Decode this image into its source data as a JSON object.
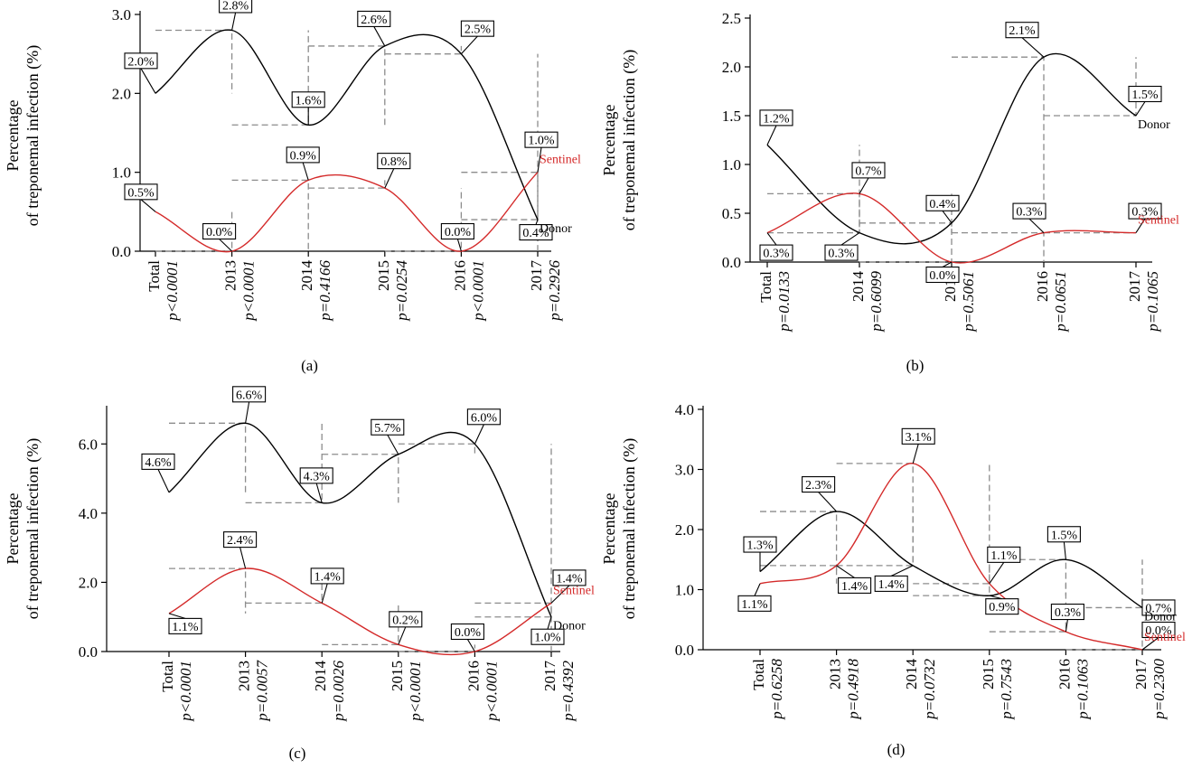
{
  "chart_data": [
    {
      "type": "line",
      "panel_label": "(a)",
      "ylabel_line1": "Percentage",
      "ylabel_line2": "of treponemal infection (%)",
      "ylim": [
        0,
        3.0
      ],
      "yticks": [
        0.0,
        1.0,
        2.0,
        3.0
      ],
      "ytick_labels": [
        "0.0",
        "1.0",
        "2.0",
        "3.0"
      ],
      "categories": [
        "Total",
        "2013",
        "2014",
        "2015",
        "2016",
        "2017"
      ],
      "pvalues": [
        "p<0.0001",
        "p<0.0001",
        "p=0.4166",
        "p=0.0254",
        "p<0.0001",
        "p=0.2926"
      ],
      "series": [
        {
          "name": "Donor",
          "color": "#000000",
          "values": [
            2.0,
            2.8,
            1.6,
            2.6,
            2.5,
            0.4
          ],
          "labels": [
            "2.0%",
            "2.8%",
            "1.6%",
            "2.6%",
            "2.5%",
            "0.4%"
          ]
        },
        {
          "name": "Sentinel",
          "color": "#d42a2a",
          "values": [
            0.5,
            0.0,
            0.9,
            0.8,
            0.0,
            1.0
          ],
          "labels": [
            "0.5%",
            "0.0%",
            "0.9%",
            "0.8%",
            "0.0%",
            "1.0%"
          ]
        }
      ]
    },
    {
      "type": "line",
      "panel_label": "(b)",
      "ylabel_line1": "Percentage",
      "ylabel_line2": "of treponemal infection (%)",
      "ylim": [
        0,
        2.5
      ],
      "yticks": [
        0.0,
        0.5,
        1.0,
        1.5,
        2.0,
        2.5
      ],
      "ytick_labels": [
        "0.0",
        "0.5",
        "1.0",
        "1.5",
        "2.0",
        "2.5"
      ],
      "categories": [
        "Total",
        "2014",
        "2015",
        "2016",
        "2017"
      ],
      "pvalues": [
        "p=0.0133",
        "p=0.6099",
        "p=0.5061",
        "p=0.0651",
        "p=0.1065"
      ],
      "series": [
        {
          "name": "Donor",
          "color": "#000000",
          "values": [
            1.2,
            0.3,
            0.4,
            2.1,
            1.5
          ],
          "labels": [
            "1.2%",
            "0.3%",
            "0.4%",
            "2.1%",
            "1.5%"
          ]
        },
        {
          "name": "Sentinel",
          "color": "#d42a2a",
          "values": [
            0.3,
            0.7,
            0.0,
            0.3,
            0.3
          ],
          "labels": [
            "0.3%",
            "0.7%",
            "0.0%",
            "0.3%",
            "0.3%"
          ]
        }
      ]
    },
    {
      "type": "line",
      "panel_label": "(c)",
      "ylabel_line1": "Percentage",
      "ylabel_line2": "of treponemal infection (%)",
      "ylim": [
        0,
        7.0
      ],
      "yticks": [
        0.0,
        2.0,
        4.0,
        6.0
      ],
      "ytick_labels": [
        "0.0",
        "2.0",
        "4.0",
        "6.0"
      ],
      "categories": [
        "Total",
        "2013",
        "2014",
        "2015",
        "2016",
        "2017"
      ],
      "pvalues": [
        "p<0.0001",
        "p=0.0057",
        "p=0.0026",
        "p<0.0001",
        "p<0.0001",
        "p=0.4392"
      ],
      "series": [
        {
          "name": "Donor",
          "color": "#000000",
          "values": [
            4.6,
            6.6,
            4.3,
            5.7,
            6.0,
            1.0
          ],
          "labels": [
            "4.6%",
            "6.6%",
            "4.3%",
            "5.7%",
            "6.0%",
            "1.0%"
          ]
        },
        {
          "name": "Sentinel",
          "color": "#d42a2a",
          "values": [
            1.1,
            2.4,
            1.4,
            0.2,
            0.0,
            1.4
          ],
          "labels": [
            "1.1%",
            "2.4%",
            "1.4%",
            "0.2%",
            "0.0%",
            "1.4%"
          ]
        }
      ]
    },
    {
      "type": "line",
      "panel_label": "(d)",
      "ylabel_line1": "Percentage",
      "ylabel_line2": "of treponemal infection (%)",
      "ylim": [
        0,
        4.0
      ],
      "yticks": [
        0.0,
        1.0,
        2.0,
        3.0,
        4.0
      ],
      "ytick_labels": [
        "0.0",
        "1.0",
        "2.0",
        "3.0",
        "4.0"
      ],
      "categories": [
        "Total",
        "2013",
        "2014",
        "2015",
        "2016",
        "2017"
      ],
      "pvalues": [
        "p=0.6258",
        "p=0.4918",
        "p=0.0732",
        "p=0.7543",
        "p=0.1063",
        "p=0.2300"
      ],
      "series": [
        {
          "name": "Donor",
          "color": "#000000",
          "values": [
            1.3,
            2.3,
            1.4,
            0.9,
            1.5,
            0.7
          ],
          "labels": [
            "1.3%",
            "2.3%",
            "1.4%",
            "0.9%",
            "1.5%",
            "0.7%"
          ]
        },
        {
          "name": "Sentinel",
          "color": "#d42a2a",
          "values": [
            1.1,
            1.4,
            3.1,
            1.1,
            0.3,
            0.0
          ],
          "labels": [
            "1.1%",
            "1.4%",
            "3.1%",
            "1.1%",
            "0.3%",
            "0.0%"
          ]
        }
      ]
    }
  ]
}
